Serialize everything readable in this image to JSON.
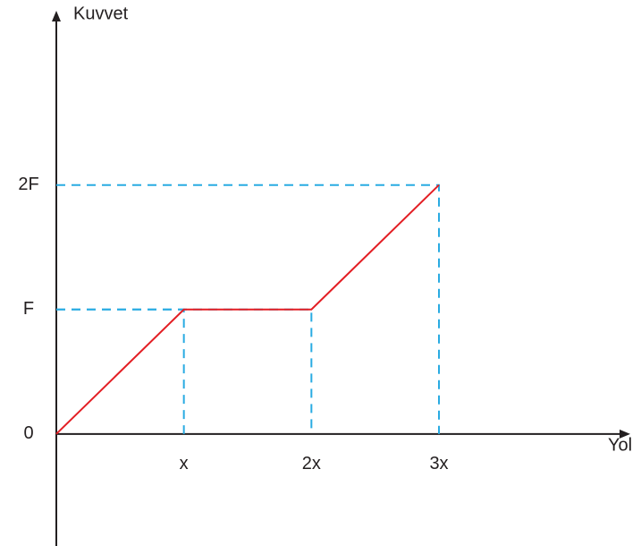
{
  "chart_data": {
    "type": "line",
    "x": [
      0,
      1,
      2,
      3
    ],
    "series": [
      {
        "color": "#e31e24",
        "values": [
          0,
          1,
          1,
          2
        ]
      }
    ],
    "xlim": [
      0,
      4.5
    ],
    "ylim": [
      -0.9,
      3.4
    ],
    "xticks": [
      {
        "value": 1,
        "label": "x"
      },
      {
        "value": 2,
        "label": "2x"
      },
      {
        "value": 3,
        "label": "3x"
      }
    ],
    "yticks": [
      0,
      {
        "value": 1,
        "label": "F"
      },
      {
        "value": 2,
        "label": "2F"
      }
    ],
    "xlabel": "Yol",
    "ylabel": "Kuvvet",
    "guide_color": "#29abe2"
  }
}
